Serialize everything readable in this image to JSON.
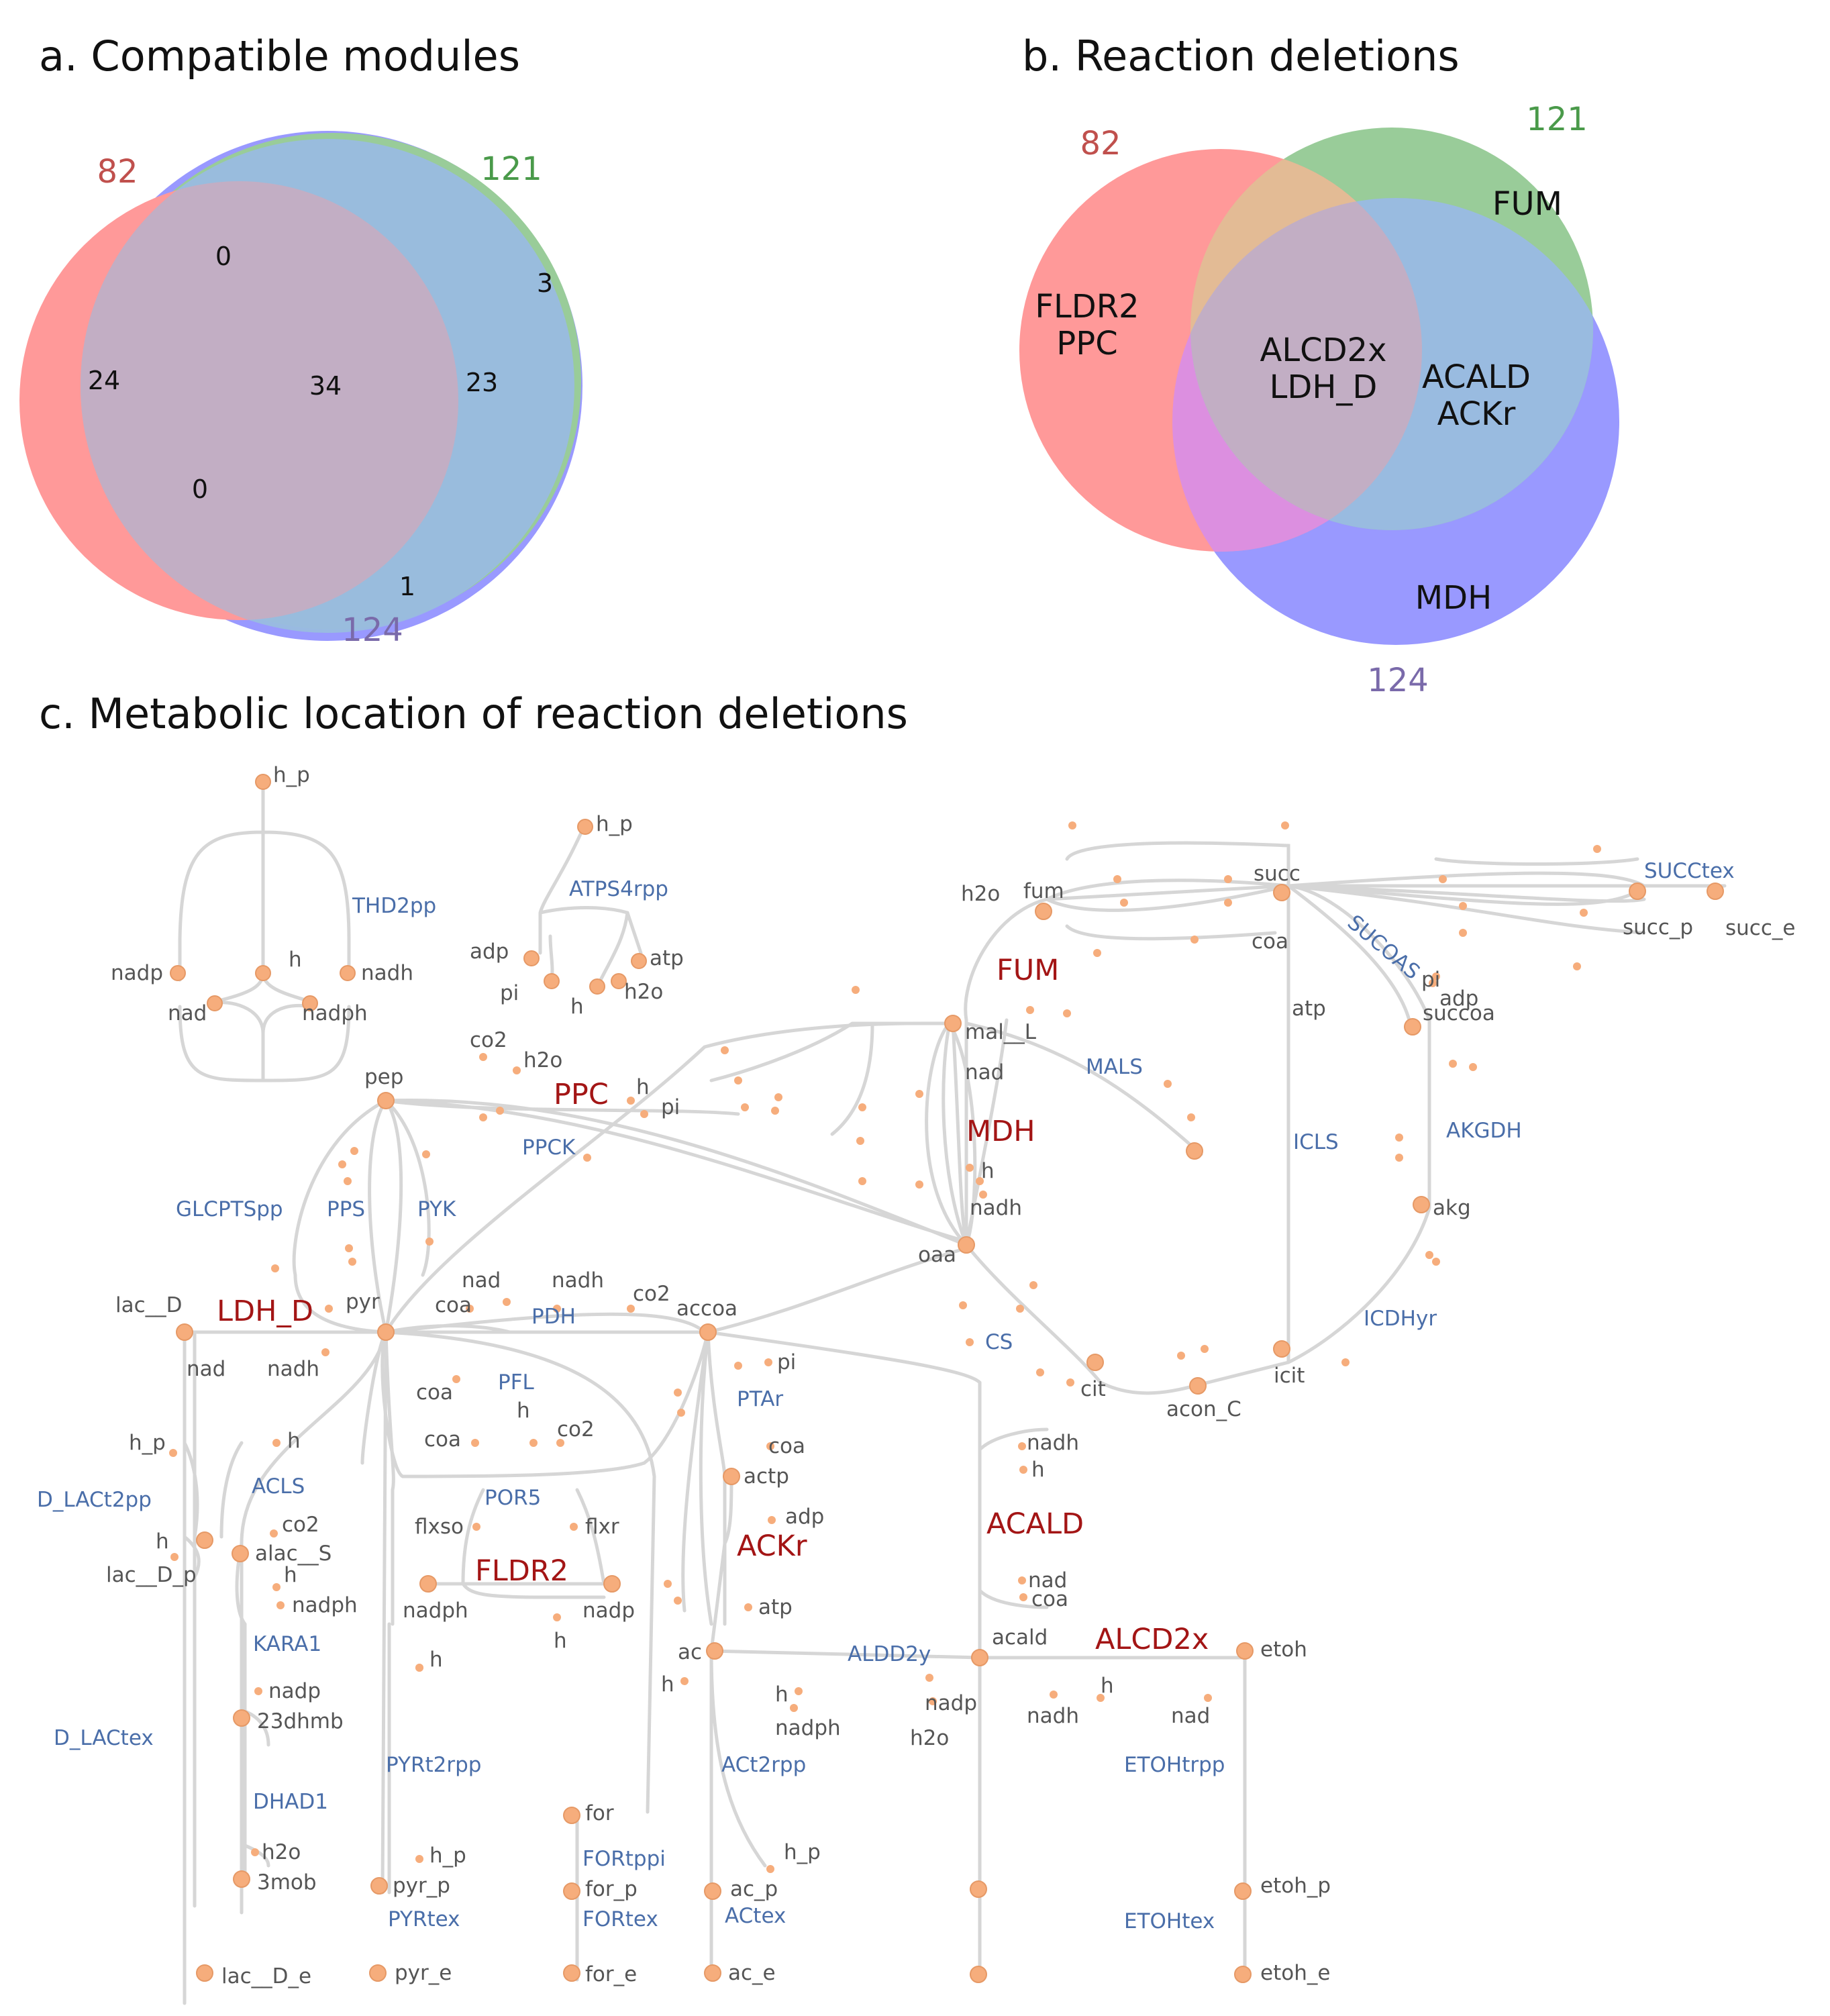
{
  "panel_a": {
    "title": "a. Compatible  modules",
    "totals": {
      "red": "82",
      "green": "121",
      "blue": "124"
    },
    "regions": {
      "red_only": "24",
      "red_green": "0",
      "green_only": "3",
      "all": "34",
      "green_blue": "23",
      "red_blue": "0",
      "blue_only": "1"
    }
  },
  "panel_b": {
    "title": "b. Reaction deletions",
    "totals": {
      "red": "82",
      "green": "121",
      "blue": "124"
    },
    "regions": {
      "red_only": [
        "FLDR2",
        "PPC"
      ],
      "all": [
        "ALCD2x",
        "LDH_D"
      ],
      "green_blue": [
        "ACALD",
        "ACKr"
      ],
      "green_only": "FUM",
      "blue_only": "MDH"
    }
  },
  "panel_c": {
    "title": "c. Metabolic location of reaction deletions",
    "metabolites": [
      {
        "id": "h_p_top",
        "label": "h_p"
      },
      {
        "id": "nadp1",
        "label": "nadp"
      },
      {
        "id": "nad1",
        "label": "nad"
      },
      {
        "id": "h1",
        "label": "h"
      },
      {
        "id": "nadph1",
        "label": "nadph"
      },
      {
        "id": "nadh1",
        "label": "nadh"
      },
      {
        "id": "h_p2",
        "label": "h_p"
      },
      {
        "id": "adp1",
        "label": "adp"
      },
      {
        "id": "pi1",
        "label": "pi"
      },
      {
        "id": "h2",
        "label": "h"
      },
      {
        "id": "h2o1",
        "label": "h2o"
      },
      {
        "id": "atp1",
        "label": "atp"
      },
      {
        "id": "pep",
        "label": "pep"
      },
      {
        "id": "co2a",
        "label": "co2"
      },
      {
        "id": "h2oa",
        "label": "h2o"
      },
      {
        "id": "h3",
        "label": "h"
      },
      {
        "id": "pi2",
        "label": "pi"
      },
      {
        "id": "pyr",
        "label": "pyr"
      },
      {
        "id": "lac_D",
        "label": "lac__D"
      },
      {
        "id": "nad2",
        "label": "nad"
      },
      {
        "id": "nadh2",
        "label": "nadh"
      },
      {
        "id": "nad3",
        "label": "nad"
      },
      {
        "id": "coa1",
        "label": "coa"
      },
      {
        "id": "nadh3",
        "label": "nadh"
      },
      {
        "id": "co2b",
        "label": "co2"
      },
      {
        "id": "accoa",
        "label": "accoa"
      },
      {
        "id": "coa2",
        "label": "coa"
      },
      {
        "id": "coa3",
        "label": "coa"
      },
      {
        "id": "h4",
        "label": "h"
      },
      {
        "id": "co2c",
        "label": "co2"
      },
      {
        "id": "flxso",
        "label": "flxso"
      },
      {
        "id": "flxr",
        "label": "flxr"
      },
      {
        "id": "nadph2",
        "label": "nadph"
      },
      {
        "id": "nadp2",
        "label": "nadp"
      },
      {
        "id": "h5",
        "label": "h"
      },
      {
        "id": "pi3",
        "label": "pi"
      },
      {
        "id": "coa4",
        "label": "coa"
      },
      {
        "id": "actp",
        "label": "actp"
      },
      {
        "id": "adp2",
        "label": "adp"
      },
      {
        "id": "atp2",
        "label": "atp"
      },
      {
        "id": "ac",
        "label": "ac"
      },
      {
        "id": "h6",
        "label": "h"
      },
      {
        "id": "h7",
        "label": "h"
      },
      {
        "id": "nadph3",
        "label": "nadph"
      },
      {
        "id": "nadp3",
        "label": "nadp"
      },
      {
        "id": "h2o2",
        "label": "h2o"
      },
      {
        "id": "acald",
        "label": "acald"
      },
      {
        "id": "nadh4",
        "label": "nadh"
      },
      {
        "id": "h8",
        "label": "h"
      },
      {
        "id": "nad4",
        "label": "nad"
      },
      {
        "id": "coa5",
        "label": "coa"
      },
      {
        "id": "nadh5",
        "label": "nadh"
      },
      {
        "id": "h9",
        "label": "h"
      },
      {
        "id": "nad5",
        "label": "nad"
      },
      {
        "id": "etoh",
        "label": "etoh"
      },
      {
        "id": "h2o3",
        "label": "h2o"
      },
      {
        "id": "fum",
        "label": "fum"
      },
      {
        "id": "succ",
        "label": "succ"
      },
      {
        "id": "coa6",
        "label": "coa"
      },
      {
        "id": "atp3",
        "label": "atp"
      },
      {
        "id": "mal_L",
        "label": "mal__L"
      },
      {
        "id": "nad6",
        "label": "nad"
      },
      {
        "id": "h10",
        "label": "h"
      },
      {
        "id": "nadh6",
        "label": "nadh"
      },
      {
        "id": "oaa",
        "label": "oaa"
      },
      {
        "id": "cit",
        "label": "cit"
      },
      {
        "id": "acon_C",
        "label": "acon_C"
      },
      {
        "id": "icit",
        "label": "icit"
      },
      {
        "id": "pi4",
        "label": "pi"
      },
      {
        "id": "adp3",
        "label": "adp"
      },
      {
        "id": "succoa",
        "label": "succoa"
      },
      {
        "id": "akg",
        "label": "akg"
      },
      {
        "id": "succ_p",
        "label": "succ_p"
      },
      {
        "id": "succ_e",
        "label": "succ_e"
      },
      {
        "id": "h_p3",
        "label": "h_p"
      },
      {
        "id": "h11",
        "label": "h"
      },
      {
        "id": "lac_D_p",
        "label": "lac__D_p"
      },
      {
        "id": "lac_D_e",
        "label": "lac__D_e"
      },
      {
        "id": "h12",
        "label": "h"
      },
      {
        "id": "co2d",
        "label": "co2"
      },
      {
        "id": "alac_S",
        "label": "alac__S"
      },
      {
        "id": "h13",
        "label": "h"
      },
      {
        "id": "nadph4",
        "label": "nadph"
      },
      {
        "id": "nadp4",
        "label": "nadp"
      },
      {
        "id": "23dhmb",
        "label": "23dhmb"
      },
      {
        "id": "h2o4",
        "label": "h2o"
      },
      {
        "id": "3mob",
        "label": "3mob"
      },
      {
        "id": "h14",
        "label": "h"
      },
      {
        "id": "h_p4",
        "label": "h_p"
      },
      {
        "id": "pyr_p",
        "label": "pyr_p"
      },
      {
        "id": "pyr_e",
        "label": "pyr_e"
      },
      {
        "id": "for",
        "label": "for"
      },
      {
        "id": "for_p",
        "label": "for_p"
      },
      {
        "id": "for_e",
        "label": "for_e"
      },
      {
        "id": "h_p5",
        "label": "h_p"
      },
      {
        "id": "ac_p",
        "label": "ac_p"
      },
      {
        "id": "ac_e",
        "label": "ac_e"
      },
      {
        "id": "etoh_p",
        "label": "etoh_p"
      },
      {
        "id": "etoh_e",
        "label": "etoh_e"
      }
    ],
    "reactions": [
      "THD2pp",
      "ATPS4rpp",
      "PPCK",
      "GLCPTSpp",
      "PPS",
      "PYK",
      "PDH",
      "PFL",
      "POR5",
      "PTAr",
      "ALDD2y",
      "MALS",
      "ICLS",
      "CS",
      "ICDHyr",
      "AKGDH",
      "SUCOAS",
      "SUCCtex",
      "D_LACt2pp",
      "ACLS",
      "KARA1",
      "DHAD1",
      "D_LACtex",
      "PYRt2rpp",
      "PYRtex",
      "FORtppi",
      "FORtex",
      "ACt2rpp",
      "ACtex",
      "ETOHtrpp",
      "ETOHtex"
    ],
    "deletions": [
      "FUM",
      "PPC",
      "MDH",
      "LDH_D",
      "FLDR2",
      "ACKr",
      "ACALD",
      "ALCD2x"
    ],
    "colors": {
      "node_fill": "#f6ad7c",
      "node_stroke": "#e69966",
      "edge": "#d6d6d6",
      "reaction": "#4a6ea9",
      "deletion": "#a31515",
      "metabolite": "#555555"
    }
  },
  "colors": {
    "red": "#ff9999",
    "green": "#99cc99",
    "blue": "#99bbe0",
    "purple": "#9999ff",
    "red_text": "#c0504d",
    "green_text": "#4a9a4a",
    "blue_text": "#7a6aaa"
  }
}
